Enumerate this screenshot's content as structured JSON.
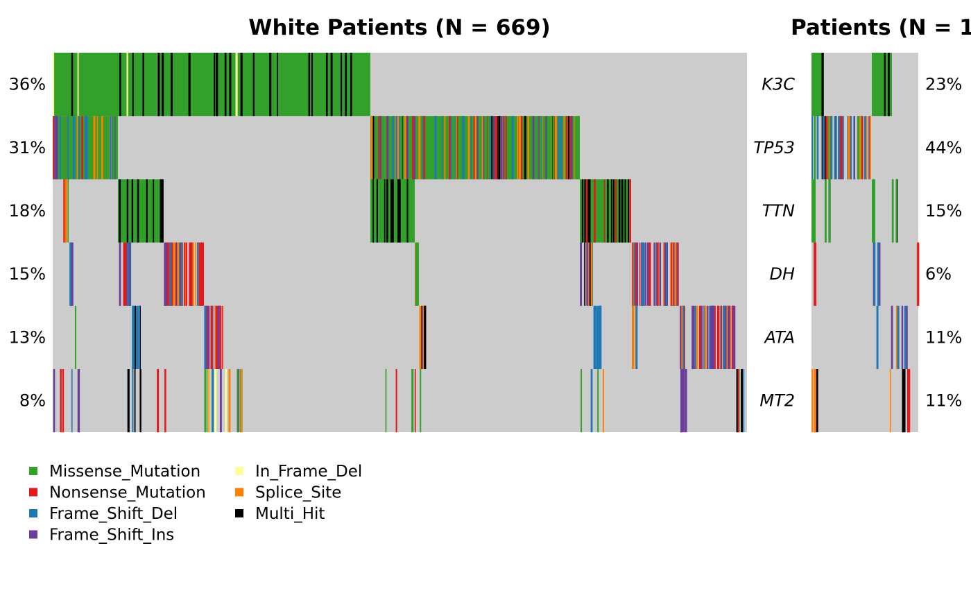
{
  "chart_data": [
    {
      "type": "heatmap",
      "subtype": "oncoplot",
      "title": "White Patients (N = 669)",
      "genes_visible": [
        "K3C",
        "TP53",
        "TTN",
        "DH",
        "ATA",
        "MT2"
      ],
      "row_percentages": [
        "36%",
        "31%",
        "18%",
        "15%",
        "13%",
        "8%"
      ],
      "row_mutation_fraction": [
        0.36,
        0.31,
        0.18,
        0.15,
        0.13,
        0.08
      ],
      "background_color": "#CCCCCC"
    },
    {
      "type": "heatmap",
      "subtype": "oncoplot",
      "title": "Patients (N = 1",
      "row_percentages": [
        "23%",
        "44%",
        "15%",
        "6%",
        "11%",
        "11%"
      ],
      "row_mutation_fraction": [
        0.23,
        0.44,
        0.15,
        0.06,
        0.11,
        0.11
      ],
      "background_color": "#CCCCCC"
    }
  ],
  "legend": {
    "placement": "bottom-left",
    "items": [
      {
        "label": "Missense_Mutation",
        "color": "#33A02C"
      },
      {
        "label": "Nonsense_Mutation",
        "color": "#E31A1C"
      },
      {
        "label": "Frame_Shift_Del",
        "color": "#1F78B4"
      },
      {
        "label": "Frame_Shift_Ins",
        "color": "#6A3D9A"
      },
      {
        "label": "In_Frame_Del",
        "color": "#FFFF99"
      },
      {
        "label": "Splice_Site",
        "color": "#FF7F00"
      },
      {
        "label": "Multi_Hit",
        "color": "#000000"
      }
    ]
  }
}
